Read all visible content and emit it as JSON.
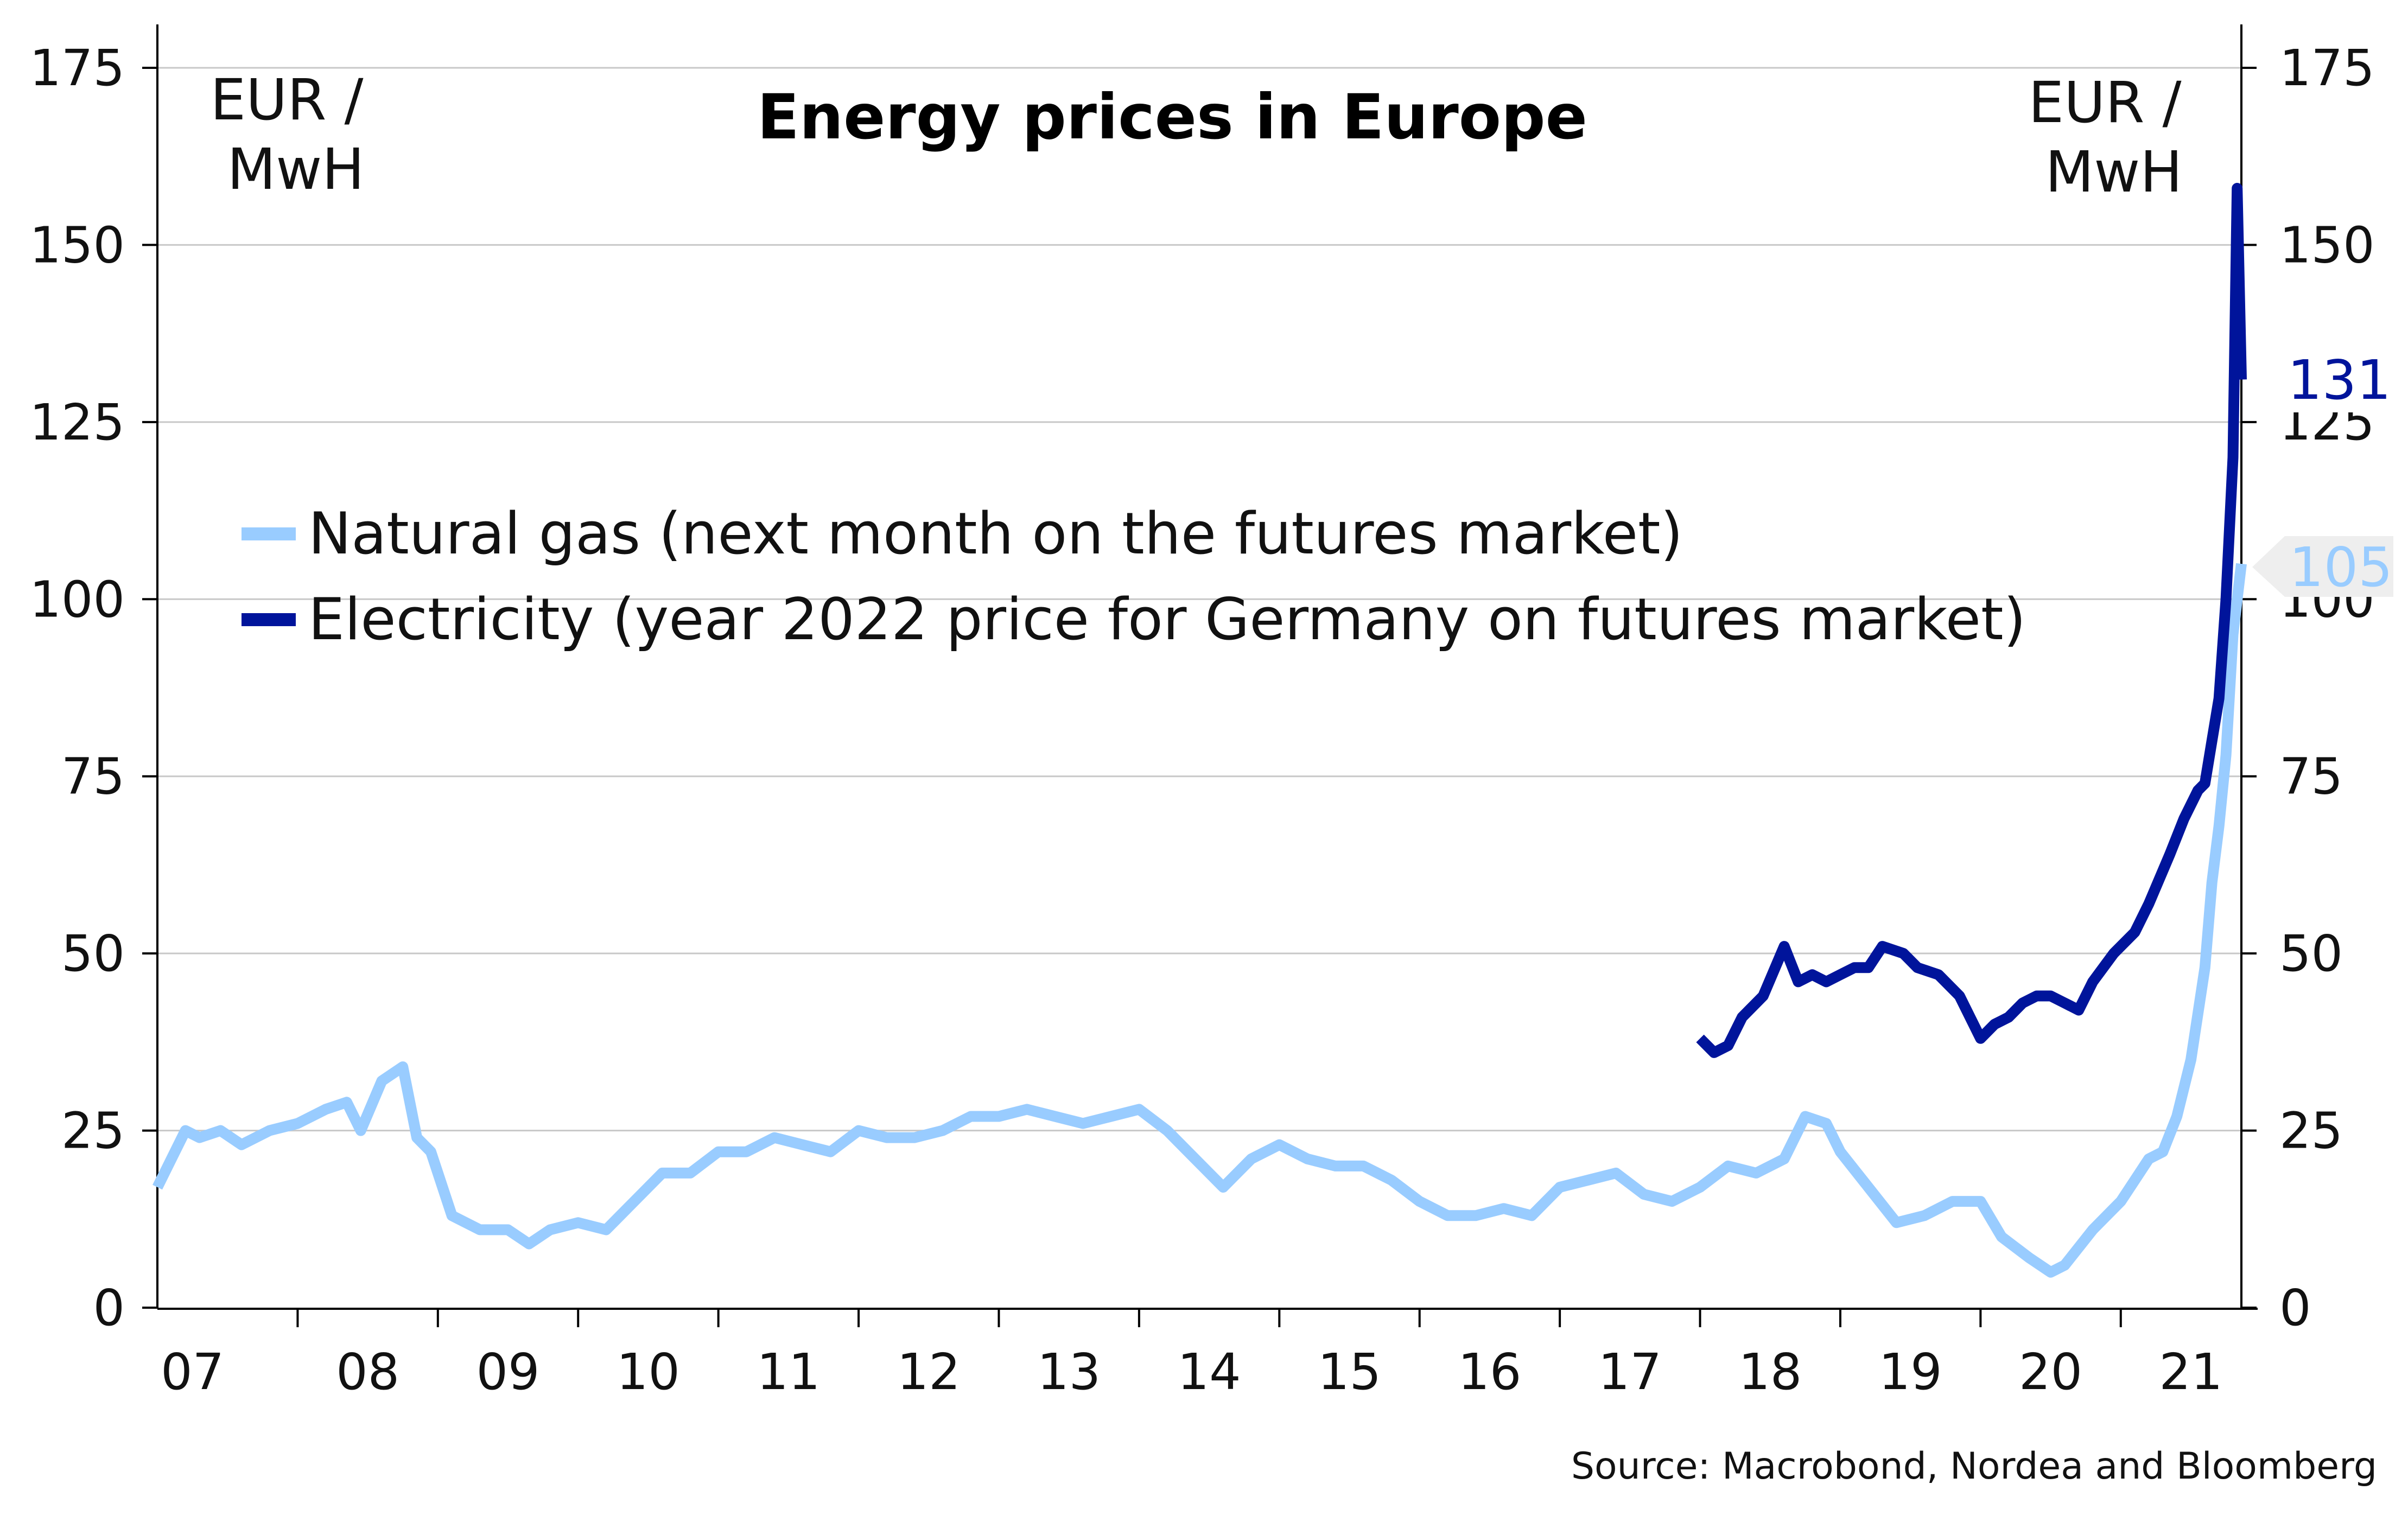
{
  "chart_data": {
    "type": "line",
    "title": "Energy prices in Europe",
    "ylabel_left": "EUR / MwH",
    "ylabel_right": "EUR / MwH",
    "source": "Source: Macrobond, Nordea and Bloomberg",
    "x_ticks": [
      "07",
      "08",
      "09",
      "10",
      "11",
      "12",
      "13",
      "14",
      "15",
      "16",
      "17",
      "18",
      "19",
      "20",
      "21"
    ],
    "y_ticks": [
      0,
      25,
      50,
      75,
      100,
      125,
      150,
      175
    ],
    "ylim": [
      0,
      175
    ],
    "xlim": [
      2007.0,
      2021.86
    ],
    "grid": true,
    "legend_position": "middle-left",
    "colors": {
      "gas": "#99ccff",
      "electricity": "#00149b",
      "grid": "#c8c8c8",
      "axis": "#000000"
    },
    "series": [
      {
        "name": "Natural gas (next month on the futures market)",
        "end_label": "105",
        "x": [
          2007.0,
          2007.1,
          2007.2,
          2007.3,
          2007.45,
          2007.6,
          2007.8,
          2008.0,
          2008.2,
          2008.35,
          2008.45,
          2008.6,
          2008.75,
          2008.85,
          2008.95,
          2009.1,
          2009.3,
          2009.5,
          2009.65,
          2009.8,
          2010.0,
          2010.2,
          2010.4,
          2010.6,
          2010.8,
          2011.0,
          2011.2,
          2011.4,
          2011.6,
          2011.8,
          2012.0,
          2012.2,
          2012.4,
          2012.6,
          2012.8,
          2013.0,
          2013.2,
          2013.4,
          2013.6,
          2013.8,
          2014.0,
          2014.2,
          2014.4,
          2014.6,
          2014.8,
          2015.0,
          2015.2,
          2015.4,
          2015.6,
          2015.8,
          2016.0,
          2016.2,
          2016.4,
          2016.6,
          2016.8,
          2017.0,
          2017.2,
          2017.4,
          2017.6,
          2017.8,
          2018.0,
          2018.2,
          2018.4,
          2018.6,
          2018.75,
          2018.9,
          2019.0,
          2019.2,
          2019.4,
          2019.6,
          2019.8,
          2020.0,
          2020.15,
          2020.35,
          2020.5,
          2020.6,
          2020.8,
          2020.95,
          2021.0,
          2021.1,
          2021.2,
          2021.3,
          2021.4,
          2021.5,
          2021.6,
          2021.65,
          2021.7,
          2021.75,
          2021.8,
          2021.86
        ],
        "y": [
          17,
          21,
          25,
          24,
          25,
          23,
          25,
          26,
          28,
          29,
          25,
          32,
          34,
          24,
          22,
          13,
          11,
          11,
          9,
          11,
          12,
          11,
          15,
          19,
          19,
          22,
          22,
          24,
          23,
          22,
          25,
          24,
          24,
          25,
          27,
          27,
          28,
          27,
          26,
          27,
          28,
          25,
          21,
          17,
          21,
          23,
          21,
          20,
          20,
          18,
          15,
          13,
          13,
          14,
          13,
          17,
          18,
          19,
          16,
          15,
          17,
          20,
          19,
          21,
          27,
          26,
          22,
          17,
          12,
          13,
          15,
          15,
          10,
          7,
          5,
          6,
          11,
          14,
          15,
          18,
          21,
          22,
          27,
          35,
          48,
          60,
          68,
          78,
          95,
          105
        ]
      },
      {
        "name": "Electricity (year 2022 price for Germany on futures market)",
        "end_label": "131",
        "x": [
          2018.0,
          2018.1,
          2018.2,
          2018.3,
          2018.45,
          2018.6,
          2018.7,
          2018.8,
          2018.9,
          2019.0,
          2019.1,
          2019.2,
          2019.3,
          2019.45,
          2019.55,
          2019.7,
          2019.85,
          2020.0,
          2020.1,
          2020.2,
          2020.3,
          2020.4,
          2020.5,
          2020.6,
          2020.7,
          2020.8,
          2020.95,
          2021.1,
          2021.2,
          2021.35,
          2021.45,
          2021.55,
          2021.6,
          2021.65,
          2021.7,
          2021.75,
          2021.8,
          2021.83,
          2021.86
        ],
        "y": [
          38,
          36,
          37,
          41,
          44,
          51,
          46,
          47,
          46,
          47,
          48,
          48,
          51,
          50,
          48,
          47,
          44,
          38,
          40,
          41,
          43,
          44,
          44,
          43,
          42,
          46,
          50,
          53,
          57,
          64,
          69,
          73,
          74,
          80,
          86,
          100,
          120,
          158,
          131
        ]
      }
    ]
  }
}
